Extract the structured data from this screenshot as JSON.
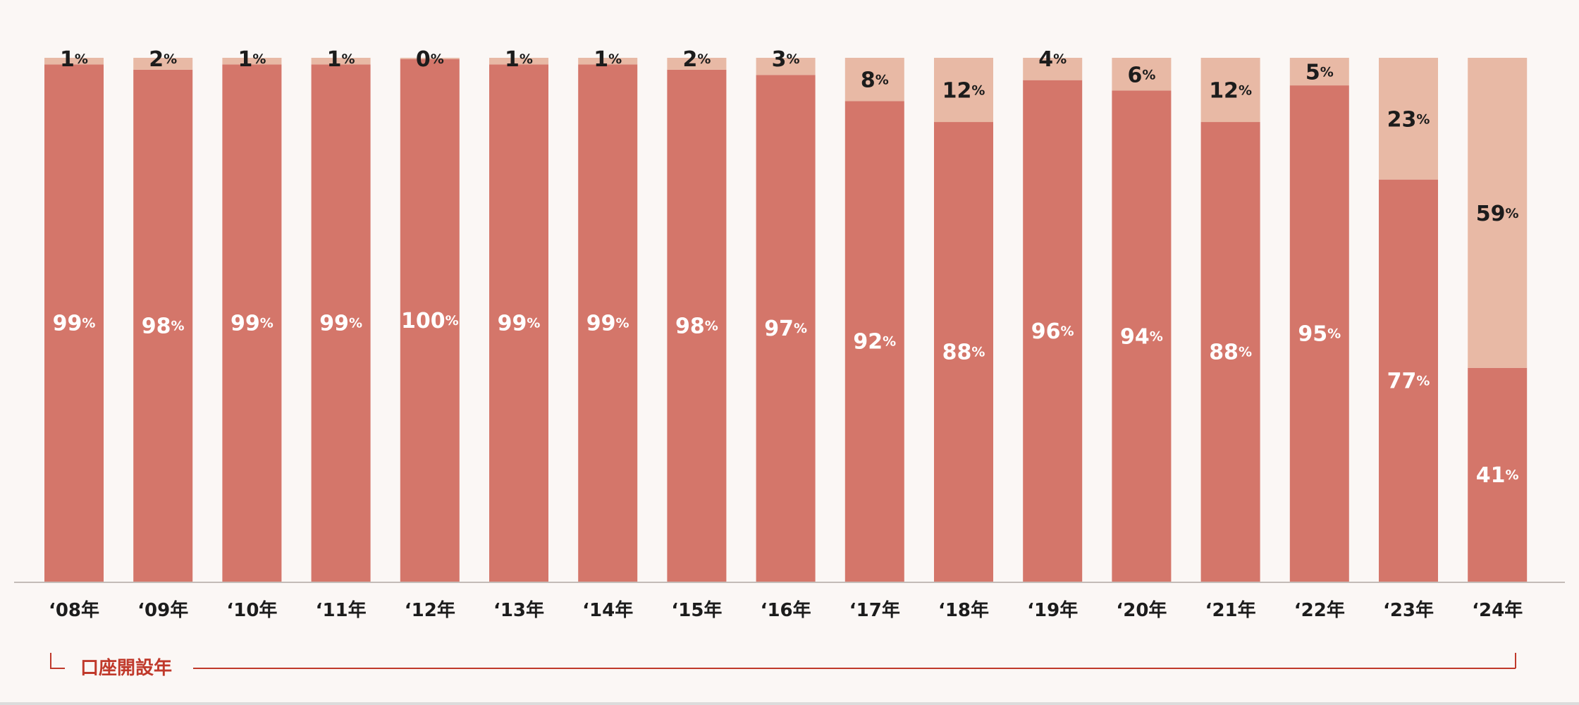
{
  "chart_data": {
    "type": "bar",
    "stacked": true,
    "categories": [
      "‘08年",
      "‘09年",
      "‘10年",
      "‘11年",
      "‘12年",
      "‘13年",
      "‘14年",
      "‘15年",
      "‘16年",
      "‘17年",
      "‘18年",
      "‘19年",
      "‘20年",
      "‘21年",
      "‘22年",
      "‘23年",
      "‘24年"
    ],
    "series": [
      {
        "values": [
          99,
          98,
          99,
          99,
          100,
          99,
          99,
          98,
          97,
          92,
          88,
          96,
          94,
          88,
          95,
          77,
          41
        ],
        "color": "#d4766a",
        "label_color": "#ffffff"
      },
      {
        "values": [
          1,
          2,
          1,
          1,
          0,
          1,
          1,
          2,
          3,
          8,
          12,
          4,
          6,
          12,
          5,
          23,
          59
        ],
        "color": "#e8b9a5",
        "label_color": "#1c1c1c"
      }
    ],
    "value_suffix": "%",
    "ylim": [
      0,
      100
    ],
    "xlabel": "口座開設年",
    "grid": false,
    "legend": "none"
  },
  "colors": {
    "background": "#fbf7f5",
    "baseline": "#c4bcb8",
    "axis_accent": "#c0392b",
    "tick_text": "#1c1c1c"
  }
}
